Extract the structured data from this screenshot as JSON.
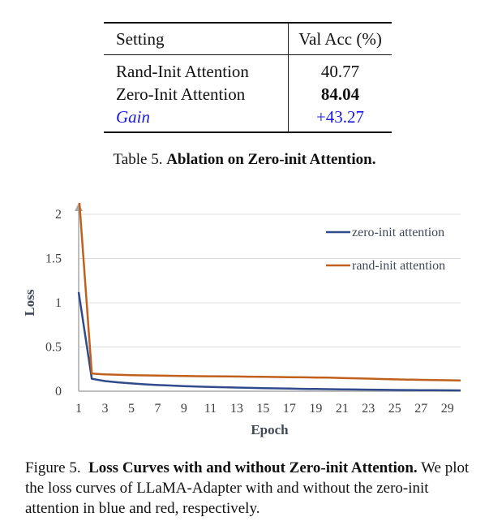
{
  "table": {
    "header": {
      "setting": "Setting",
      "val_acc": "Val Acc (%)"
    },
    "rows": [
      {
        "setting": "Rand-Init Attention",
        "value": "40.77"
      },
      {
        "setting": "Zero-Init Attention",
        "value": "84.04"
      },
      {
        "setting": "Gain",
        "value": "+43.27"
      }
    ],
    "caption_prefix": "Table 5.",
    "caption_title": "Ablation on Zero-init Attention."
  },
  "figure": {
    "caption_prefix": "Figure 5.",
    "caption_title": "Loss Curves with and without Zero-init Attention.",
    "caption_text": "We plot the loss curves of LLaMA-Adapter with and without the zero-init attention in blue and red, respectively."
  },
  "colors": {
    "gain": "#1a1adf",
    "zero_init": "#2f4b8c",
    "rand_init": "#c0601c",
    "axis_arrow": "#a8a8a8",
    "grid": "#dcdcdc"
  },
  "chart_data": {
    "type": "line",
    "xlabel": "Epoch",
    "ylabel": "Loss",
    "xlim": [
      1,
      30
    ],
    "ylim": [
      0,
      2
    ],
    "xticks": [
      1,
      3,
      5,
      7,
      9,
      11,
      13,
      15,
      17,
      19,
      21,
      23,
      25,
      27,
      29
    ],
    "yticks": [
      0,
      0.5,
      1,
      1.5,
      2
    ],
    "ytick_labels": [
      "0",
      "0.5",
      "1",
      "1.5",
      "2"
    ],
    "grid": "horizontal",
    "legend_position": "top-right",
    "x": [
      1,
      2,
      3,
      4,
      5,
      6,
      7,
      8,
      9,
      10,
      11,
      12,
      13,
      14,
      15,
      16,
      17,
      18,
      19,
      20,
      21,
      22,
      23,
      24,
      25,
      26,
      27,
      28,
      29,
      30
    ],
    "series": [
      {
        "name": "zero-init attention",
        "color": "#2f4b8c",
        "values": [
          1.12,
          0.14,
          0.115,
          0.1,
          0.088,
          0.078,
          0.07,
          0.064,
          0.058,
          0.053,
          0.049,
          0.045,
          0.041,
          0.038,
          0.035,
          0.032,
          0.029,
          0.027,
          0.025,
          0.023,
          0.021,
          0.019,
          0.017,
          0.016,
          0.014,
          0.013,
          0.012,
          0.011,
          0.01,
          0.009
        ]
      },
      {
        "name": "rand-init attention",
        "color": "#c0601c",
        "values": [
          2.25,
          0.2,
          0.19,
          0.185,
          0.182,
          0.179,
          0.176,
          0.174,
          0.172,
          0.17,
          0.169,
          0.167,
          0.166,
          0.164,
          0.163,
          0.161,
          0.159,
          0.157,
          0.155,
          0.153,
          0.15,
          0.146,
          0.142,
          0.138,
          0.134,
          0.131,
          0.128,
          0.126,
          0.124,
          0.122
        ]
      }
    ]
  }
}
